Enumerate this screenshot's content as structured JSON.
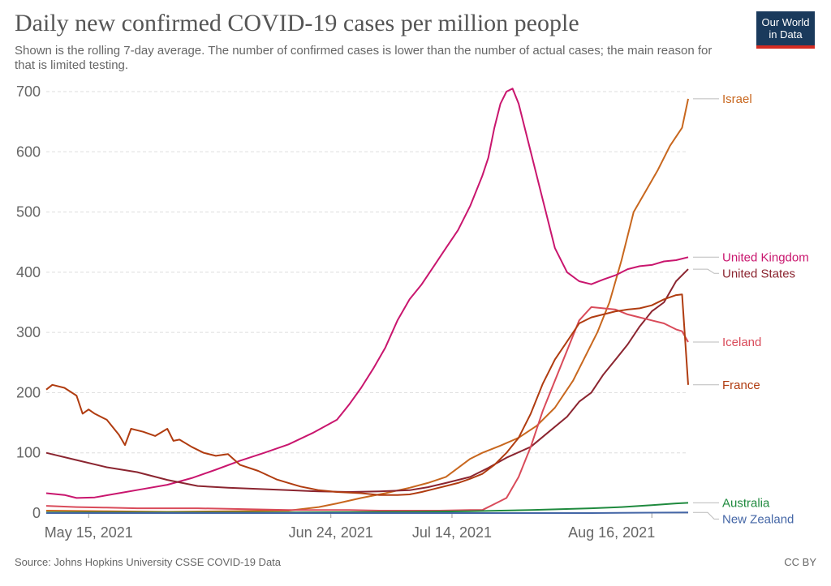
{
  "header": {
    "title": "Daily new confirmed COVID-19 cases per million people",
    "subtitle": "Shown is the rolling 7-day average. The number of confirmed cases is lower than the number of actual cases; the main reason for that is limited testing.",
    "logo_line1": "Our World",
    "logo_line2": "in Data"
  },
  "footer": {
    "source": "Source: Johns Hopkins University CSSE COVID-19 Data",
    "license": "CC BY"
  },
  "chart_data": {
    "type": "line",
    "title": "Daily new confirmed COVID-19 cases per million people",
    "ylim": [
      0,
      700
    ],
    "yticks": [
      "0",
      "100",
      "200",
      "300",
      "400",
      "500",
      "600",
      "700"
    ],
    "xlim_day": [
      0,
      99
    ],
    "xticks": [
      {
        "day": 7,
        "label": "May 15, 2021"
      },
      {
        "day": 47,
        "label": "Jun 24, 2021"
      },
      {
        "day": 67,
        "label": "Jul 14, 2021"
      },
      {
        "day": 100,
        "label": "Aug 16, 2021"
      }
    ],
    "grid": true,
    "legend": "right",
    "series": [
      {
        "name": "Israel",
        "color": "#c8671e",
        "points": [
          [
            0,
            4
          ],
          [
            10,
            3
          ],
          [
            20,
            2
          ],
          [
            30,
            3
          ],
          [
            40,
            4
          ],
          [
            45,
            10
          ],
          [
            48,
            16
          ],
          [
            52,
            25
          ],
          [
            56,
            33
          ],
          [
            60,
            42
          ],
          [
            63,
            50
          ],
          [
            66,
            60
          ],
          [
            68,
            75
          ],
          [
            70,
            90
          ],
          [
            72,
            100
          ],
          [
            75,
            112
          ],
          [
            78,
            125
          ],
          [
            81,
            145
          ],
          [
            84,
            175
          ],
          [
            87,
            220
          ],
          [
            89,
            260
          ],
          [
            91,
            300
          ],
          [
            93,
            350
          ],
          [
            95,
            420
          ],
          [
            97,
            500
          ],
          [
            99,
            535
          ],
          [
            101,
            570
          ],
          [
            103,
            610
          ],
          [
            105,
            640
          ],
          [
            106,
            688
          ]
        ]
      },
      {
        "name": "United Kingdom",
        "color": "#c9166e",
        "points": [
          [
            0,
            33
          ],
          [
            3,
            30
          ],
          [
            5,
            25
          ],
          [
            8,
            26
          ],
          [
            12,
            33
          ],
          [
            16,
            40
          ],
          [
            20,
            47
          ],
          [
            24,
            58
          ],
          [
            28,
            72
          ],
          [
            32,
            87
          ],
          [
            36,
            100
          ],
          [
            40,
            114
          ],
          [
            44,
            133
          ],
          [
            48,
            155
          ],
          [
            50,
            180
          ],
          [
            52,
            208
          ],
          [
            54,
            240
          ],
          [
            56,
            275
          ],
          [
            58,
            320
          ],
          [
            60,
            355
          ],
          [
            62,
            380
          ],
          [
            64,
            410
          ],
          [
            66,
            440
          ],
          [
            68,
            470
          ],
          [
            70,
            510
          ],
          [
            72,
            560
          ],
          [
            73,
            590
          ],
          [
            74,
            640
          ],
          [
            75,
            680
          ],
          [
            76,
            700
          ],
          [
            77,
            705
          ],
          [
            78,
            680
          ],
          [
            80,
            600
          ],
          [
            82,
            520
          ],
          [
            84,
            440
          ],
          [
            86,
            400
          ],
          [
            88,
            385
          ],
          [
            90,
            380
          ],
          [
            92,
            388
          ],
          [
            94,
            395
          ],
          [
            96,
            405
          ],
          [
            98,
            410
          ],
          [
            100,
            412
          ],
          [
            102,
            418
          ],
          [
            104,
            420
          ],
          [
            106,
            425
          ]
        ]
      },
      {
        "name": "United States",
        "color": "#8b2530",
        "points": [
          [
            0,
            100
          ],
          [
            5,
            88
          ],
          [
            10,
            76
          ],
          [
            15,
            68
          ],
          [
            20,
            55
          ],
          [
            25,
            45
          ],
          [
            30,
            42
          ],
          [
            35,
            40
          ],
          [
            40,
            38
          ],
          [
            45,
            36
          ],
          [
            50,
            35
          ],
          [
            55,
            36
          ],
          [
            60,
            38
          ],
          [
            63,
            43
          ],
          [
            66,
            50
          ],
          [
            70,
            60
          ],
          [
            73,
            75
          ],
          [
            76,
            92
          ],
          [
            80,
            110
          ],
          [
            83,
            135
          ],
          [
            86,
            160
          ],
          [
            88,
            185
          ],
          [
            90,
            200
          ],
          [
            92,
            230
          ],
          [
            94,
            255
          ],
          [
            96,
            280
          ],
          [
            98,
            310
          ],
          [
            100,
            335
          ],
          [
            102,
            350
          ],
          [
            104,
            385
          ],
          [
            105,
            395
          ],
          [
            106,
            405
          ]
        ]
      },
      {
        "name": "Iceland",
        "color": "#d94b5a",
        "points": [
          [
            0,
            12
          ],
          [
            5,
            10
          ],
          [
            10,
            9
          ],
          [
            15,
            8
          ],
          [
            20,
            8
          ],
          [
            25,
            8
          ],
          [
            30,
            7
          ],
          [
            35,
            6
          ],
          [
            40,
            5
          ],
          [
            45,
            5
          ],
          [
            50,
            5
          ],
          [
            55,
            4
          ],
          [
            60,
            4
          ],
          [
            65,
            4
          ],
          [
            70,
            5
          ],
          [
            72,
            5
          ],
          [
            74,
            15
          ],
          [
            76,
            25
          ],
          [
            78,
            60
          ],
          [
            80,
            110
          ],
          [
            82,
            170
          ],
          [
            84,
            220
          ],
          [
            86,
            270
          ],
          [
            88,
            320
          ],
          [
            90,
            342
          ],
          [
            92,
            340
          ],
          [
            94,
            338
          ],
          [
            96,
            330
          ],
          [
            98,
            325
          ],
          [
            100,
            320
          ],
          [
            102,
            315
          ],
          [
            104,
            305
          ],
          [
            105,
            302
          ],
          [
            106,
            284
          ]
        ]
      },
      {
        "name": "France",
        "color": "#b03c10",
        "points": [
          [
            0,
            205
          ],
          [
            1,
            213
          ],
          [
            3,
            208
          ],
          [
            5,
            195
          ],
          [
            6,
            165
          ],
          [
            7,
            172
          ],
          [
            8,
            165
          ],
          [
            10,
            155
          ],
          [
            12,
            130
          ],
          [
            13,
            113
          ],
          [
            14,
            140
          ],
          [
            16,
            135
          ],
          [
            18,
            128
          ],
          [
            20,
            140
          ],
          [
            21,
            120
          ],
          [
            22,
            122
          ],
          [
            24,
            110
          ],
          [
            26,
            100
          ],
          [
            28,
            95
          ],
          [
            30,
            98
          ],
          [
            32,
            80
          ],
          [
            35,
            70
          ],
          [
            38,
            56
          ],
          [
            40,
            50
          ],
          [
            42,
            44
          ],
          [
            45,
            38
          ],
          [
            48,
            35
          ],
          [
            52,
            33
          ],
          [
            55,
            30
          ],
          [
            58,
            30
          ],
          [
            60,
            31
          ],
          [
            62,
            35
          ],
          [
            64,
            40
          ],
          [
            66,
            45
          ],
          [
            68,
            50
          ],
          [
            70,
            57
          ],
          [
            72,
            65
          ],
          [
            74,
            80
          ],
          [
            76,
            100
          ],
          [
            78,
            125
          ],
          [
            80,
            165
          ],
          [
            82,
            215
          ],
          [
            84,
            255
          ],
          [
            86,
            285
          ],
          [
            88,
            315
          ],
          [
            90,
            325
          ],
          [
            92,
            330
          ],
          [
            94,
            335
          ],
          [
            96,
            338
          ],
          [
            98,
            340
          ],
          [
            100,
            345
          ],
          [
            102,
            355
          ],
          [
            104,
            362
          ],
          [
            105,
            363
          ],
          [
            106,
            213
          ]
        ]
      },
      {
        "name": "Australia",
        "color": "#1f8a3e",
        "points": [
          [
            0,
            1
          ],
          [
            20,
            1
          ],
          [
            40,
            1
          ],
          [
            60,
            2
          ],
          [
            70,
            3
          ],
          [
            80,
            5
          ],
          [
            90,
            8
          ],
          [
            95,
            10
          ],
          [
            100,
            13
          ],
          [
            104,
            16
          ],
          [
            106,
            17
          ]
        ]
      },
      {
        "name": "New Zealand",
        "color": "#4466a6",
        "points": [
          [
            0,
            0
          ],
          [
            30,
            0
          ],
          [
            60,
            0
          ],
          [
            90,
            0
          ],
          [
            106,
            1
          ]
        ]
      }
    ]
  }
}
